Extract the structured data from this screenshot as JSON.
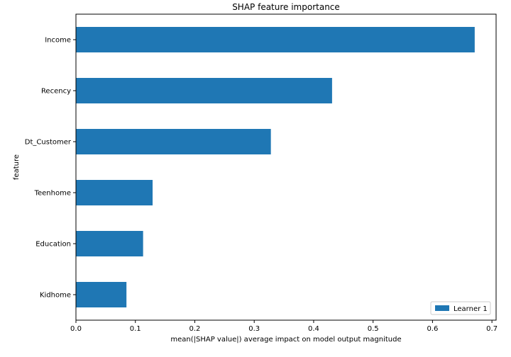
{
  "chart_data": {
    "type": "bar",
    "orientation": "horizontal",
    "title": "SHAP feature importance",
    "xlabel": "mean(|SHAP value|) average impact on model output magnitude",
    "ylabel": "feature",
    "categories": [
      "Income",
      "Recency",
      "Dt_Customer",
      "Teenhome",
      "Education",
      "Kidhome"
    ],
    "series": [
      {
        "name": "Learner 1",
        "color": "#1f77b4",
        "values": [
          0.671,
          0.431,
          0.328,
          0.129,
          0.113,
          0.085
        ]
      }
    ],
    "xlim": [
      0,
      0.707
    ],
    "xticks": [
      "0.0",
      "0.1",
      "0.2",
      "0.3",
      "0.4",
      "0.5",
      "0.6",
      "0.7"
    ],
    "grid": false,
    "legend_position": "bottom-right"
  }
}
